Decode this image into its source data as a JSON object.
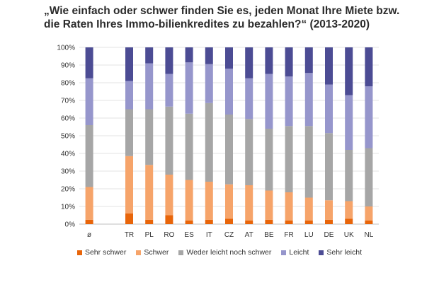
{
  "chart_data": {
    "type": "bar",
    "stacked": true,
    "title": [
      "„Wie einfach oder schwer finden Sie es, jeden Monat Ihre Miete bzw.",
      "die Raten Ihres Immo-bilienkredites zu bezahlen?“ (2013-2020)"
    ],
    "categories": [
      "ø",
      "",
      "TR",
      "PL",
      "RO",
      "ES",
      "IT",
      "CZ",
      "AT",
      "BE",
      "FR",
      "LU",
      "DE",
      "UK",
      "NL"
    ],
    "ylim": [
      0,
      100
    ],
    "yticks": [
      "0%",
      "10%",
      "20%",
      "30%",
      "40%",
      "50%",
      "60%",
      "70%",
      "80%",
      "90%",
      "100%"
    ],
    "grid": true,
    "legend_position": "bottom",
    "series": [
      {
        "name": "Sehr schwer",
        "color": "#e8650a",
        "values": [
          2.5,
          null,
          6,
          2.5,
          5,
          2,
          2.5,
          3,
          2,
          2.5,
          2,
          2,
          2.5,
          3,
          2
        ]
      },
      {
        "name": "Schwer",
        "color": "#f6a46a",
        "values": [
          18.5,
          null,
          32.5,
          31,
          23,
          23,
          21.5,
          19.5,
          20,
          16.5,
          16,
          13,
          11,
          10,
          8
        ]
      },
      {
        "name": "Weder leicht noch schwer",
        "color": "#a6a6a6",
        "values": [
          35,
          null,
          26.5,
          31.5,
          38.5,
          37.5,
          44.5,
          39.5,
          37.5,
          35,
          37.5,
          40.5,
          38,
          29,
          33
        ]
      },
      {
        "name": "Leicht",
        "color": "#9696cc",
        "values": [
          26.5,
          null,
          16,
          26,
          18.5,
          29,
          22,
          26,
          23,
          31,
          28,
          30,
          27.5,
          31,
          35
        ]
      },
      {
        "name": "Sehr leicht",
        "color": "#4c4c94",
        "values": [
          17.5,
          null,
          19,
          9,
          15,
          8.5,
          9.5,
          12,
          17.5,
          15,
          16.5,
          14.5,
          21,
          27,
          22
        ]
      }
    ]
  }
}
